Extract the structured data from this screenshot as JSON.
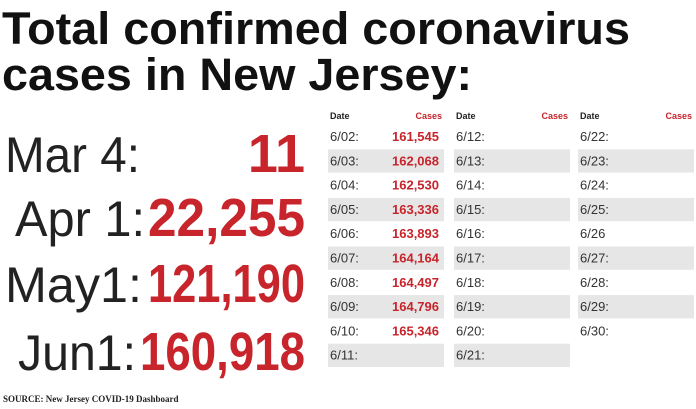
{
  "header": {
    "title_lines": [
      "Total confirmed coronavirus",
      "cases in New Jersey:"
    ]
  },
  "milestones": [
    {
      "date": "Mar 4:",
      "cases": "11"
    },
    {
      "date": "Apr 1:",
      "cases": "22,255"
    },
    {
      "date": "May1:",
      "cases": "121,190"
    },
    {
      "date": "Jun1:",
      "cases": "160,918"
    }
  ],
  "table": {
    "columns": [
      {
        "date_header": "Date",
        "cases_header": "Cases",
        "rows": [
          [
            "6/02:",
            "161,545"
          ],
          [
            "6/03:",
            "162,068"
          ],
          [
            "6/04:",
            "162,530"
          ],
          [
            "6/05:",
            "163,336"
          ],
          [
            "6/06:",
            "163,893"
          ],
          [
            "6/07:",
            "164,164"
          ],
          [
            "6/08:",
            "164,497"
          ],
          [
            "6/09:",
            "164,796"
          ],
          [
            "6/10:",
            "165,346"
          ],
          [
            "6/11:"
          ]
        ]
      },
      {
        "date_header": "Date",
        "cases_header": "Cases",
        "rows": [
          [
            "6/12:"
          ],
          [
            "6/13:"
          ],
          [
            "6/14:"
          ],
          [
            "6/15:"
          ],
          [
            "6/16:"
          ],
          [
            "6/17:"
          ],
          [
            "6/18:"
          ],
          [
            "6/19:"
          ],
          [
            "6/20:"
          ],
          [
            "6/21:"
          ]
        ]
      },
      {
        "date_header": "Date",
        "cases_header": "Cases",
        "rows": [
          [
            "6/22:"
          ],
          [
            "6/23:"
          ],
          [
            "6/24:"
          ],
          [
            "6/25:"
          ],
          [
            "6/26"
          ],
          [
            "6/27:"
          ],
          [
            "6/28:"
          ],
          [
            "6/29:"
          ],
          [
            "6/30:"
          ]
        ]
      }
    ]
  },
  "source": "SOURCE: New Jersey COVID-19 Dashboard"
}
